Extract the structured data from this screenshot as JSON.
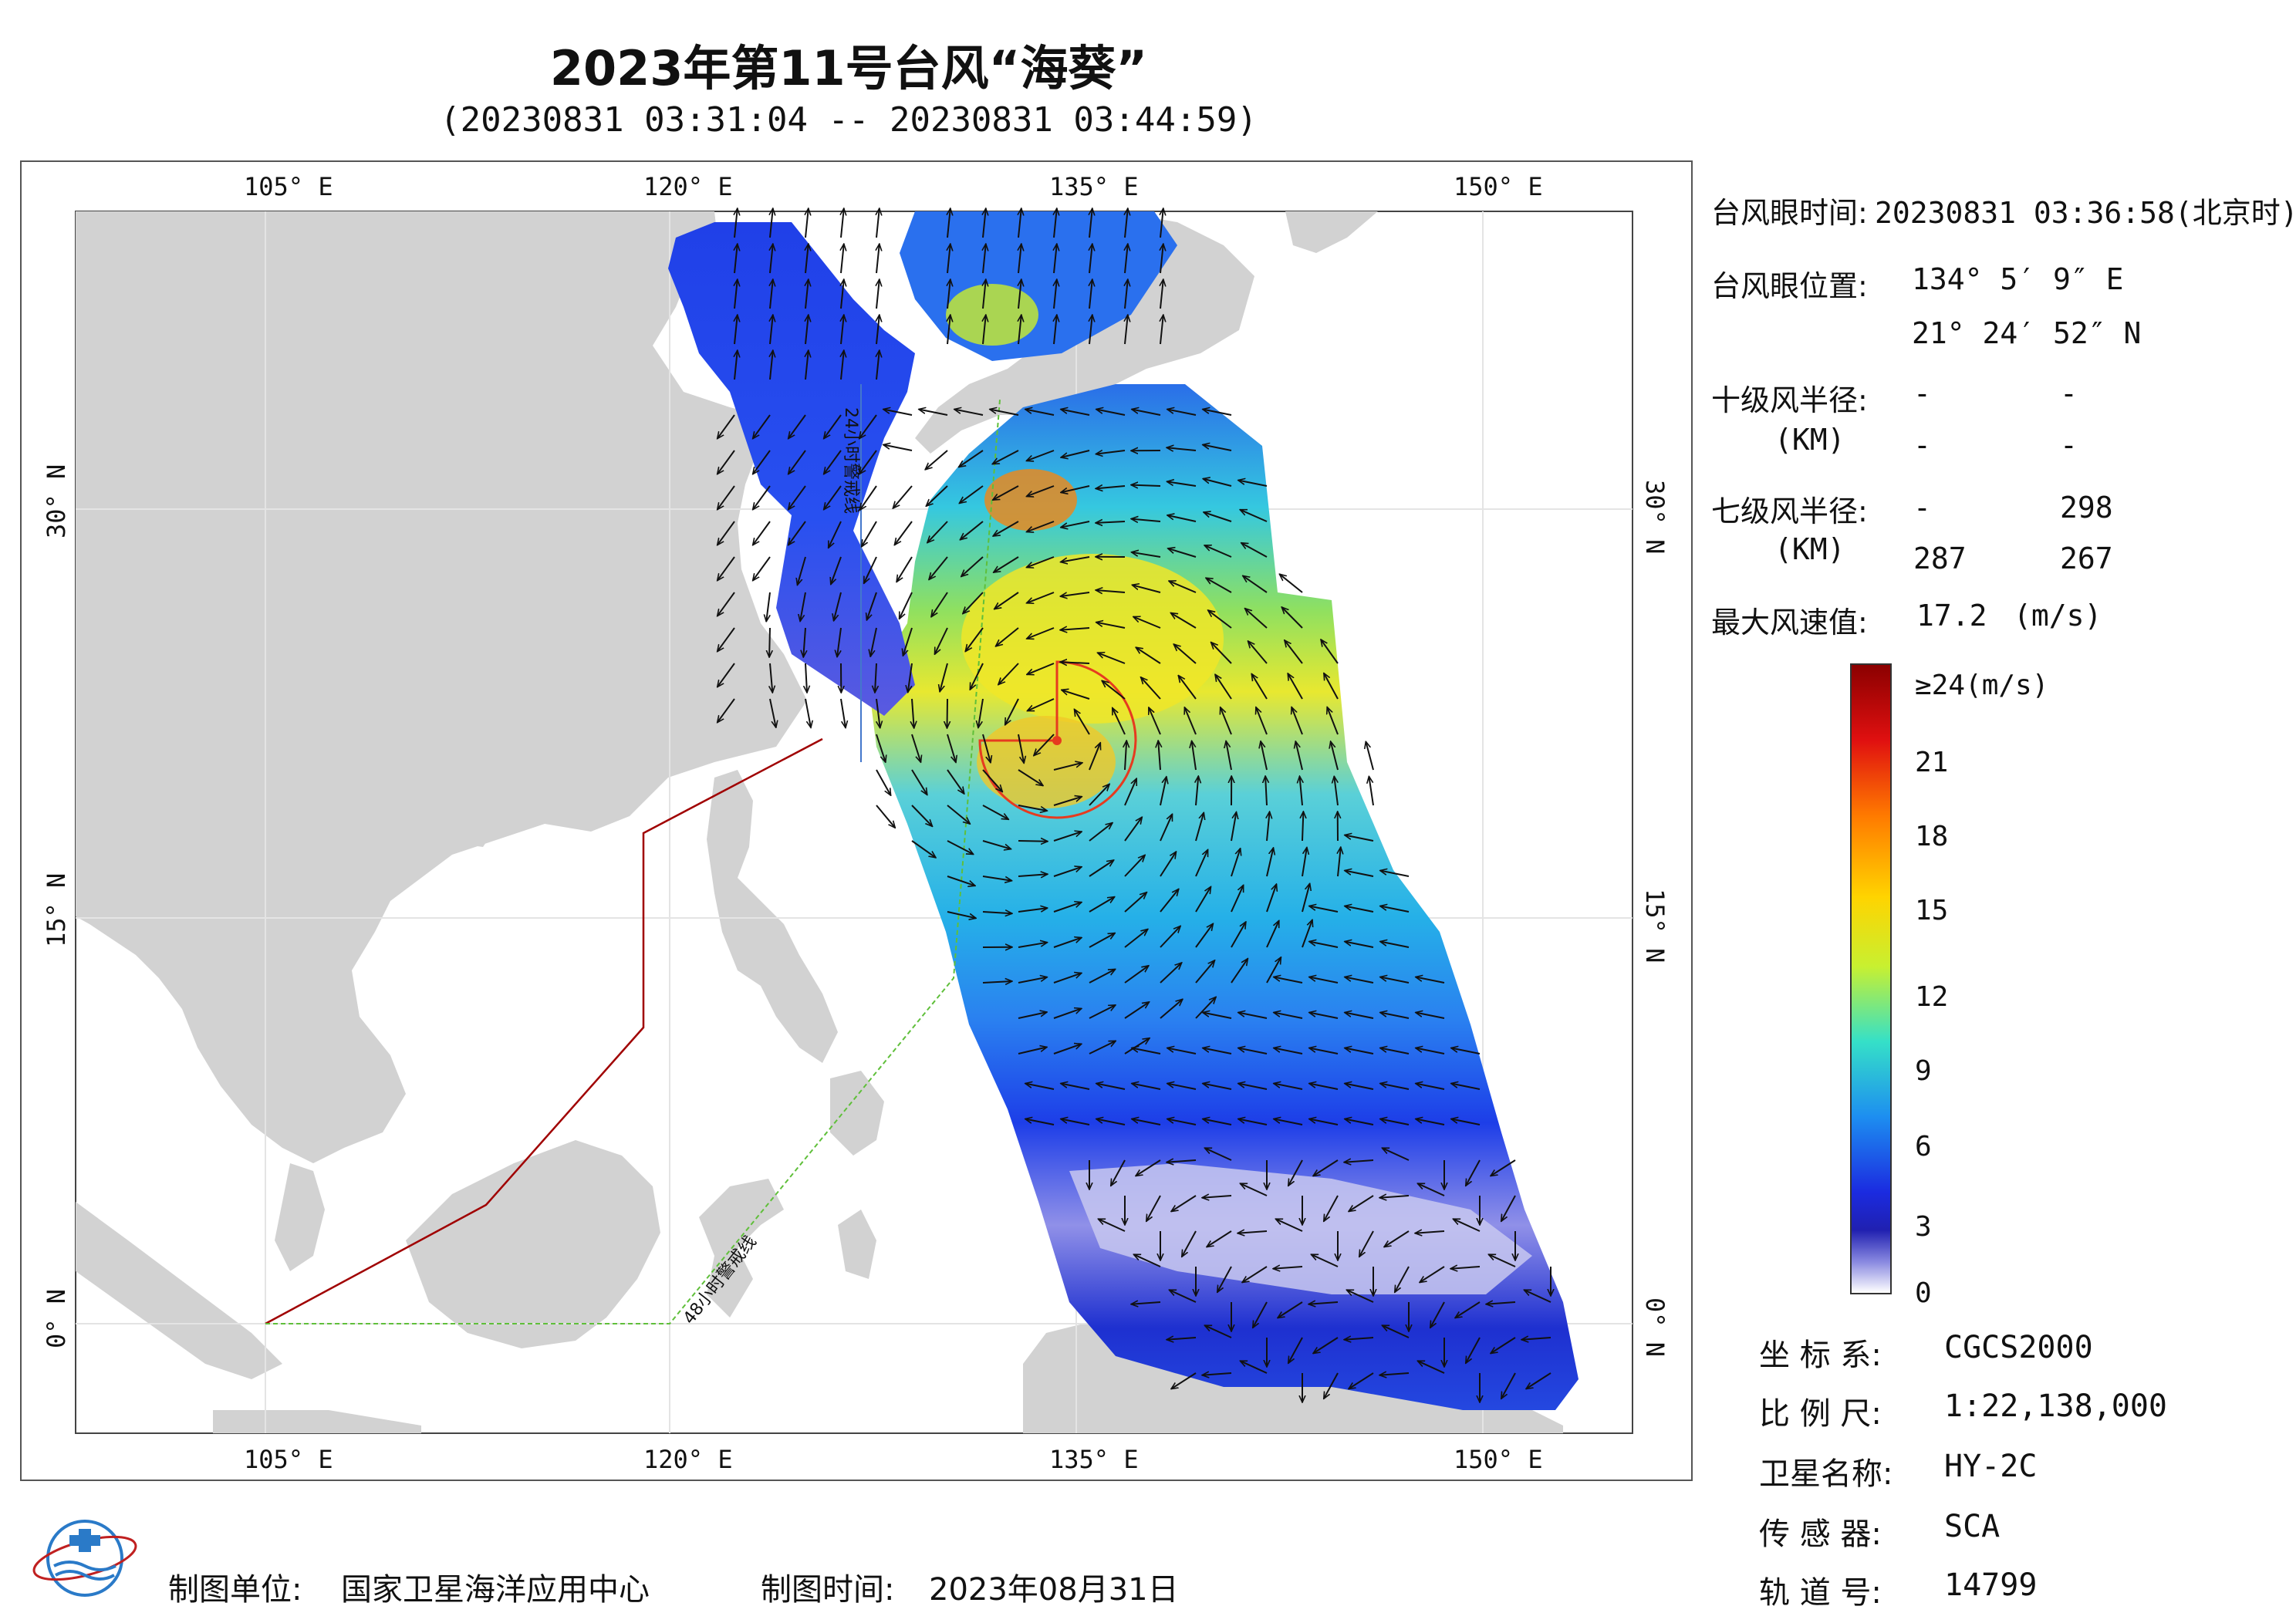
{
  "header": {
    "title": "2023年第11号台风“海葵”",
    "subtitle": "(20230831 03:31:04 -- 20230831 03:44:59)"
  },
  "map": {
    "lon_ticks_top": [
      "105° E",
      "120° E",
      "135° E",
      "150° E"
    ],
    "lon_ticks_bottom": [
      "105° E",
      "120° E",
      "135° E",
      "150° E"
    ],
    "lat_ticks_left": [
      "30° N",
      "15° N",
      "0° N"
    ],
    "lat_ticks_right": [
      "30° N",
      "15° N",
      "0° N"
    ],
    "warning_24h_label": "24小时警戒线",
    "warning_48h_label": "48小时警戒线",
    "colors": {
      "land": "#d2d2d2",
      "sea": "#ffffff",
      "warning_24h": "#a00000",
      "warning_48h": "#5fbf3a",
      "radius_circle": "#e63b1f"
    }
  },
  "typhoon": {
    "eye_time_label": "台风眼时间:",
    "eye_time_value": "20230831 03:36:58(北京时)",
    "eye_pos_label": "台风眼位置:",
    "eye_lon": "134° 5′ 9″ E",
    "eye_lat": "21° 24′ 52″ N",
    "r10_label": "十级风半径:",
    "r10_unit": "(KM)",
    "r10_values": [
      "-",
      "-",
      "-",
      "-"
    ],
    "r7_label": "七级风半径:",
    "r7_unit": "(KM)",
    "r7_values": [
      "-",
      "298",
      "287",
      "267"
    ],
    "max_wind_label": "最大风速值:",
    "max_wind_value": "17.2",
    "max_wind_unit": "(m/s)"
  },
  "colorbar": {
    "labels": [
      "≥24(m/s)",
      "21",
      "18",
      "15",
      "12",
      "9",
      "6",
      "3",
      "0"
    ],
    "stops": [
      "#8b0000",
      "#e01010",
      "#ff7a00",
      "#ffd400",
      "#c8f030",
      "#35e0c8",
      "#1d8ef0",
      "#1b2be0",
      "#2020b0",
      "#8888e0",
      "#ffffff"
    ]
  },
  "meta": {
    "crs_label": "坐 标 系:",
    "crs_value": "CGCS2000",
    "scale_label": "比 例 尺:",
    "scale_value": "1:22,138,000",
    "satellite_label": "卫星名称:",
    "satellite_value": "HY-2C",
    "sensor_label": "传 感 器:",
    "sensor_value": "SCA",
    "orbit_label": "轨 道 号:",
    "orbit_value": "14799"
  },
  "footer": {
    "producer_label": "制图单位:",
    "producer_value": "国家卫星海洋应用中心",
    "date_label": "制图时间:",
    "date_value": "2023年08月31日"
  }
}
